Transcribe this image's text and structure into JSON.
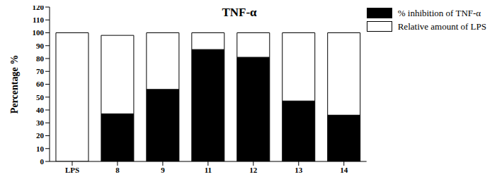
{
  "chart_data": {
    "type": "bar",
    "title": "TNF-α",
    "y_label": "Percentage %",
    "categories": [
      "LPS",
      "8",
      "9",
      "11",
      "12",
      "13",
      "14"
    ],
    "stacked": true,
    "legend": "upper right",
    "series": [
      {
        "name": "% inhibition of TNF-α",
        "color": "#000000",
        "values": [
          0,
          37,
          56,
          87,
          81,
          47,
          36
        ]
      },
      {
        "name": "Relative amount of LPS",
        "color": "#ffffff",
        "values": [
          100,
          61,
          44,
          13,
          19,
          53,
          64
        ]
      }
    ],
    "ylim": [
      0,
      120
    ],
    "yticks": [
      0,
      10,
      20,
      30,
      40,
      50,
      60,
      70,
      80,
      90,
      100,
      110,
      120
    ]
  }
}
